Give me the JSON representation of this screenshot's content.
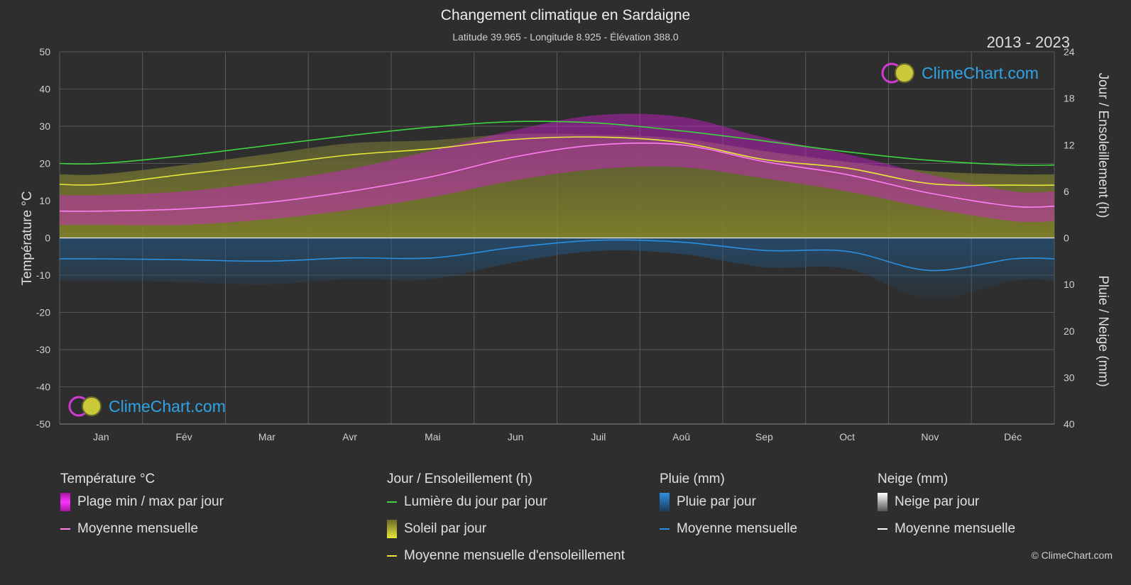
{
  "header": {
    "title": "Changement climatique en Sardaigne",
    "subtitle": "Latitude 39.965 - Longitude 8.925 - Élévation 388.0",
    "years": "2013 - 2023"
  },
  "logo": {
    "text": "ClimeChart.com"
  },
  "copyright": "© ClimeChart.com",
  "axes": {
    "left_label": "Température °C",
    "right_top_label": "Jour / Ensoleillement (h)",
    "right_bottom_label": "Pluie / Neige (mm)"
  },
  "legend": {
    "temperature": {
      "title": "Température °C",
      "items": [
        "Plage min / max par jour",
        "Moyenne mensuelle"
      ]
    },
    "sun": {
      "title": "Jour / Ensoleillement (h)",
      "items": [
        "Lumière du jour par jour",
        "Soleil par jour",
        "Moyenne mensuelle d'ensoleillement"
      ]
    },
    "rain": {
      "title": "Pluie (mm)",
      "items": [
        "Pluie par jour",
        "Moyenne mensuelle"
      ]
    },
    "snow": {
      "title": "Neige (mm)",
      "items": [
        "Neige par jour",
        "Moyenne mensuelle"
      ]
    }
  },
  "colors": {
    "background": "#2e2e2e",
    "daylight": "#3fd43f",
    "sunshine_mean": "#e8e83a",
    "sunshine_fill": "#8a8a2a",
    "temp_range": "#d21fd2",
    "temp_mean": "#ff7ef2",
    "rain": "#2a8fe0",
    "snow": "#ffffff"
  },
  "chart_data": {
    "type": "area",
    "months": [
      "Jan",
      "Fév",
      "Mar",
      "Avr",
      "Mai",
      "Jun",
      "Juil",
      "Aoû",
      "Sep",
      "Oct",
      "Nov",
      "Déc"
    ],
    "temp_axis": {
      "min": -50,
      "max": 50,
      "ticks": [
        50,
        40,
        30,
        20,
        10,
        0,
        -10,
        -20,
        -30,
        -40,
        -50
      ]
    },
    "sun_axis": {
      "min": 0,
      "max": 24,
      "ticks": [
        24,
        18,
        12,
        6,
        0
      ]
    },
    "precip_axis": {
      "min": 0,
      "max": 40,
      "ticks": [
        0,
        10,
        20,
        30,
        40
      ]
    },
    "series": [
      {
        "name": "Lumière du jour par jour",
        "unit": "h",
        "values": [
          9.6,
          10.6,
          11.9,
          13.2,
          14.3,
          15.0,
          14.8,
          13.8,
          12.5,
          11.1,
          10.0,
          9.4
        ]
      },
      {
        "name": "Moyenne mensuelle d'ensoleillement",
        "unit": "h",
        "values": [
          6.9,
          8.2,
          9.4,
          10.7,
          11.5,
          12.7,
          13.0,
          12.3,
          10.1,
          9.0,
          7.0,
          6.8
        ]
      },
      {
        "name": "Soleil par jour",
        "unit": "h",
        "values": [
          8.2,
          9.4,
          10.8,
          12.2,
          12.6,
          13.4,
          13.3,
          12.8,
          11.2,
          9.8,
          8.6,
          8.2
        ]
      },
      {
        "name": "Moyenne mensuelle",
        "unit": "°C",
        "values": [
          7.2,
          7.8,
          9.5,
          12.5,
          16.5,
          21.8,
          25.0,
          25.0,
          20.5,
          17.0,
          12.0,
          8.5
        ]
      },
      {
        "name": "Plage min / max par jour (max)",
        "unit": "°C",
        "values": [
          11.5,
          12.5,
          15.0,
          18.5,
          23.5,
          29.0,
          33.0,
          32.5,
          27.0,
          22.5,
          17.0,
          12.5
        ]
      },
      {
        "name": "Plage min / max par jour (min)",
        "unit": "°C",
        "values": [
          3.5,
          3.5,
          5.0,
          7.5,
          11.0,
          15.5,
          18.5,
          19.0,
          16.0,
          12.5,
          8.0,
          4.5
        ]
      },
      {
        "name": "Pluie moyenne mensuelle",
        "unit": "mm",
        "values": [
          4.5,
          4.7,
          5.0,
          4.3,
          4.3,
          2.0,
          0.5,
          0.9,
          2.7,
          2.9,
          7.0,
          4.5
        ]
      }
    ]
  }
}
